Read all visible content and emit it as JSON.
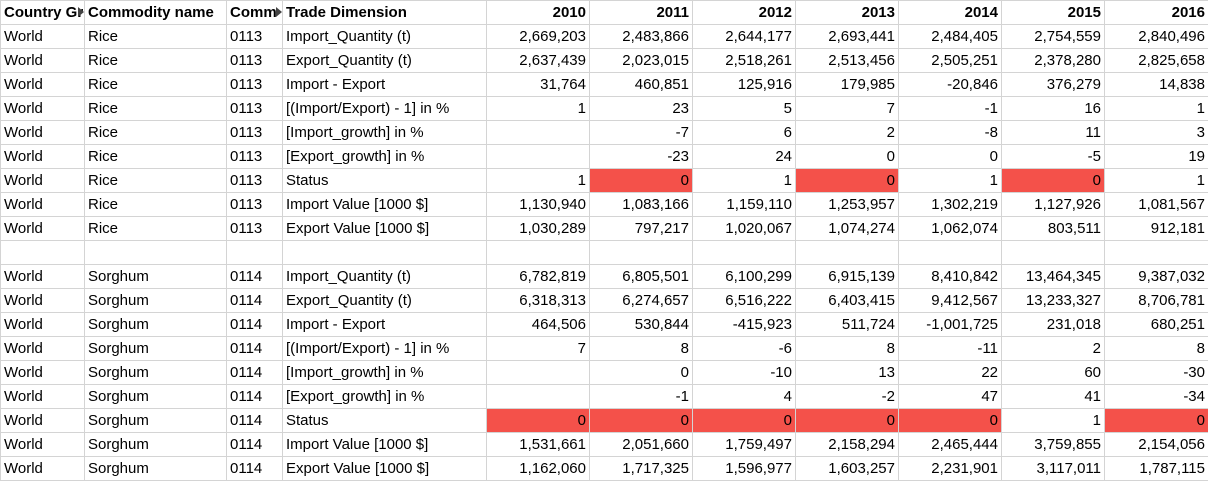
{
  "colors": {
    "status_zero_fill": "#f4514a",
    "grid": "#d4d4d4"
  },
  "header": {
    "country": "Country Gr",
    "commodity": "Commodity name",
    "code": "Comm",
    "dimension": "Trade Dimension",
    "years": [
      "2010",
      "2011",
      "2012",
      "2013",
      "2014",
      "2015",
      "2016"
    ]
  },
  "groups": [
    {
      "rows": [
        {
          "country": "World",
          "commodity": "Rice",
          "code": "0113",
          "dimension": "Import_Quantity (t)",
          "values": [
            "2,669,203",
            "2,483,866",
            "2,644,177",
            "2,693,441",
            "2,484,405",
            "2,754,559",
            "2,840,496"
          ]
        },
        {
          "country": "World",
          "commodity": "Rice",
          "code": "0113",
          "dimension": "Export_Quantity (t)",
          "values": [
            "2,637,439",
            "2,023,015",
            "2,518,261",
            "2,513,456",
            "2,505,251",
            "2,378,280",
            "2,825,658"
          ]
        },
        {
          "country": "World",
          "commodity": "Rice",
          "code": "0113",
          "dimension": "Import - Export",
          "values": [
            "31,764",
            "460,851",
            "125,916",
            "179,985",
            "-20,846",
            "376,279",
            "14,838"
          ]
        },
        {
          "country": "World",
          "commodity": "Rice",
          "code": "0113",
          "dimension": "[(Import/Export) - 1] in %",
          "values": [
            "1",
            "23",
            "5",
            "7",
            "-1",
            "16",
            "1"
          ]
        },
        {
          "country": "World",
          "commodity": "Rice",
          "code": "0113",
          "dimension": "[Import_growth] in %",
          "values": [
            "",
            "-7",
            "6",
            "2",
            "-8",
            "11",
            "3"
          ]
        },
        {
          "country": "World",
          "commodity": "Rice",
          "code": "0113",
          "dimension": "[Export_growth] in %",
          "values": [
            "",
            "-23",
            "24",
            "0",
            "0",
            "-5",
            "19"
          ]
        },
        {
          "country": "World",
          "commodity": "Rice",
          "code": "0113",
          "dimension": "Status",
          "values": [
            "1",
            "0",
            "1",
            "0",
            "1",
            "0",
            "1"
          ],
          "status": true
        },
        {
          "country": "World",
          "commodity": "Rice",
          "code": "0113",
          "dimension": "Import Value [1000 $]",
          "values": [
            "1,130,940",
            "1,083,166",
            "1,159,110",
            "1,253,957",
            "1,302,219",
            "1,127,926",
            "1,081,567"
          ]
        },
        {
          "country": "World",
          "commodity": "Rice",
          "code": "0113",
          "dimension": "Export Value [1000 $]",
          "values": [
            "1,030,289",
            "797,217",
            "1,020,067",
            "1,074,274",
            "1,062,074",
            "803,511",
            "912,181"
          ]
        }
      ]
    },
    {
      "rows": [
        {
          "country": "World",
          "commodity": "Sorghum",
          "code": "0114",
          "dimension": "Import_Quantity (t)",
          "values": [
            "6,782,819",
            "6,805,501",
            "6,100,299",
            "6,915,139",
            "8,410,842",
            "13,464,345",
            "9,387,032"
          ]
        },
        {
          "country": "World",
          "commodity": "Sorghum",
          "code": "0114",
          "dimension": "Export_Quantity (t)",
          "values": [
            "6,318,313",
            "6,274,657",
            "6,516,222",
            "6,403,415",
            "9,412,567",
            "13,233,327",
            "8,706,781"
          ]
        },
        {
          "country": "World",
          "commodity": "Sorghum",
          "code": "0114",
          "dimension": "Import - Export",
          "values": [
            "464,506",
            "530,844",
            "-415,923",
            "511,724",
            "-1,001,725",
            "231,018",
            "680,251"
          ]
        },
        {
          "country": "World",
          "commodity": "Sorghum",
          "code": "0114",
          "dimension": "[(Import/Export) - 1] in %",
          "values": [
            "7",
            "8",
            "-6",
            "8",
            "-11",
            "2",
            "8"
          ]
        },
        {
          "country": "World",
          "commodity": "Sorghum",
          "code": "0114",
          "dimension": "[Import_growth] in %",
          "values": [
            "",
            "0",
            "-10",
            "13",
            "22",
            "60",
            "-30"
          ]
        },
        {
          "country": "World",
          "commodity": "Sorghum",
          "code": "0114",
          "dimension": "[Export_growth] in %",
          "values": [
            "",
            "-1",
            "4",
            "-2",
            "47",
            "41",
            "-34"
          ]
        },
        {
          "country": "World",
          "commodity": "Sorghum",
          "code": "0114",
          "dimension": "Status",
          "values": [
            "0",
            "0",
            "0",
            "0",
            "0",
            "1",
            "0"
          ],
          "status": true
        },
        {
          "country": "World",
          "commodity": "Sorghum",
          "code": "0114",
          "dimension": "Import Value [1000 $]",
          "values": [
            "1,531,661",
            "2,051,660",
            "1,759,497",
            "2,158,294",
            "2,465,444",
            "3,759,855",
            "2,154,056"
          ]
        },
        {
          "country": "World",
          "commodity": "Sorghum",
          "code": "0114",
          "dimension": "Export Value [1000 $]",
          "values": [
            "1,162,060",
            "1,717,325",
            "1,596,977",
            "1,603,257",
            "2,231,901",
            "3,117,011",
            "1,787,115"
          ]
        }
      ]
    }
  ]
}
